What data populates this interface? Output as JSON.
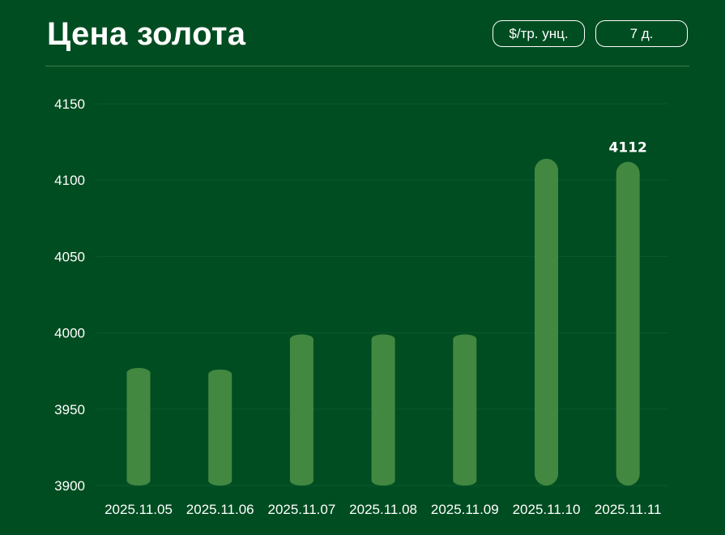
{
  "header": {
    "title": "Цена золота",
    "unit_label": "$/тр. унц.",
    "period_label": "7 д."
  },
  "colors": {
    "background": "#004d21",
    "bar": "#438841",
    "grid": "#0b5a2b",
    "text": "#ffffff"
  },
  "chart_data": {
    "type": "bar",
    "categories": [
      "2025.11.05",
      "2025.11.06",
      "2025.11.07",
      "2025.11.08",
      "2025.11.09",
      "2025.11.10",
      "2025.11.11"
    ],
    "series": [
      {
        "values": [
          3977,
          3976,
          3999,
          3999,
          3999,
          4114,
          4112
        ]
      }
    ],
    "ylim": [
      3900,
      4150
    ],
    "yticks": [
      4150,
      4100,
      4050,
      4000,
      3950,
      3900
    ],
    "data_labels": [
      {
        "index": 6,
        "text": "4112"
      }
    ],
    "grid": true,
    "legend": "none",
    "title": "",
    "xlabel": "",
    "ylabel": ""
  }
}
